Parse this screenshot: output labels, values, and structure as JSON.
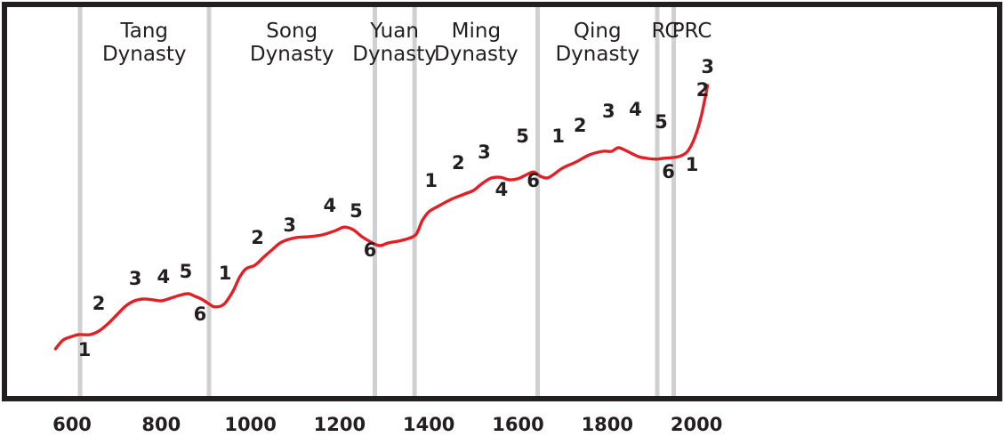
{
  "chart_data": {
    "type": "line",
    "title": "",
    "xlabel": "",
    "ylabel": "",
    "xlim": [
      550,
      2035
    ],
    "grid": false,
    "x_ticks": [
      {
        "value": 600,
        "label": "600"
      },
      {
        "value": 800,
        "label": "800"
      },
      {
        "value": 1000,
        "label": "1000"
      },
      {
        "value": 1200,
        "label": "1200"
      },
      {
        "value": 1400,
        "label": "1400"
      },
      {
        "value": 1600,
        "label": "1600"
      },
      {
        "value": 1800,
        "label": "1800"
      },
      {
        "value": 2000,
        "label": "2000"
      }
    ],
    "dynasty_boundaries": [
      618,
      907,
      1279,
      1368,
      1644,
      1912,
      1949
    ],
    "dynasties": [
      {
        "lines": [
          "Tang",
          "Dynasty"
        ],
        "center": 762
      },
      {
        "lines": [
          "Song",
          "Dynasty"
        ],
        "center": 1093
      },
      {
        "lines": [
          "Yuan",
          "Dynasty"
        ],
        "center": 1323
      },
      {
        "lines": [
          "Ming",
          "Dynasty"
        ],
        "center": 1506
      },
      {
        "lines": [
          "Qing",
          "Dynasty"
        ],
        "center": 1778
      },
      {
        "lines": [
          "RC"
        ],
        "center": 1930
      },
      {
        "lines": [
          "PRC"
        ],
        "center": 1990
      }
    ],
    "series": [
      {
        "color": "#e31f26",
        "points": [
          [
            563,
            0.12
          ],
          [
            580,
            0.145
          ],
          [
            600,
            0.155
          ],
          [
            615,
            0.16
          ],
          [
            640,
            0.16
          ],
          [
            660,
            0.17
          ],
          [
            680,
            0.19
          ],
          [
            700,
            0.215
          ],
          [
            720,
            0.24
          ],
          [
            740,
            0.255
          ],
          [
            760,
            0.26
          ],
          [
            780,
            0.258
          ],
          [
            800,
            0.255
          ],
          [
            820,
            0.262
          ],
          [
            840,
            0.27
          ],
          [
            860,
            0.275
          ],
          [
            875,
            0.268
          ],
          [
            890,
            0.26
          ],
          [
            905,
            0.248
          ],
          [
            920,
            0.238
          ],
          [
            940,
            0.245
          ],
          [
            960,
            0.28
          ],
          [
            975,
            0.32
          ],
          [
            990,
            0.345
          ],
          [
            1010,
            0.355
          ],
          [
            1030,
            0.378
          ],
          [
            1050,
            0.4
          ],
          [
            1070,
            0.42
          ],
          [
            1100,
            0.432
          ],
          [
            1130,
            0.435
          ],
          [
            1160,
            0.44
          ],
          [
            1190,
            0.452
          ],
          [
            1210,
            0.462
          ],
          [
            1230,
            0.455
          ],
          [
            1250,
            0.435
          ],
          [
            1270,
            0.42
          ],
          [
            1290,
            0.41
          ],
          [
            1310,
            0.418
          ],
          [
            1340,
            0.425
          ],
          [
            1370,
            0.44
          ],
          [
            1385,
            0.48
          ],
          [
            1400,
            0.505
          ],
          [
            1420,
            0.52
          ],
          [
            1450,
            0.54
          ],
          [
            1480,
            0.555
          ],
          [
            1500,
            0.565
          ],
          [
            1520,
            0.585
          ],
          [
            1540,
            0.6
          ],
          [
            1560,
            0.602
          ],
          [
            1580,
            0.595
          ],
          [
            1600,
            0.598
          ],
          [
            1620,
            0.61
          ],
          [
            1635,
            0.617
          ],
          [
            1650,
            0.605
          ],
          [
            1665,
            0.6
          ],
          [
            1680,
            0.61
          ],
          [
            1700,
            0.628
          ],
          [
            1730,
            0.645
          ],
          [
            1760,
            0.665
          ],
          [
            1790,
            0.675
          ],
          [
            1810,
            0.675
          ],
          [
            1825,
            0.685
          ],
          [
            1845,
            0.675
          ],
          [
            1870,
            0.66
          ],
          [
            1890,
            0.655
          ],
          [
            1910,
            0.653
          ],
          [
            1925,
            0.655
          ],
          [
            1950,
            0.658
          ],
          [
            1965,
            0.662
          ],
          [
            1980,
            0.675
          ],
          [
            1995,
            0.71
          ],
          [
            2010,
            0.77
          ],
          [
            2025,
            0.86
          ]
        ]
      }
    ],
    "phase_labels": [
      {
        "text": "1",
        "x": 628,
        "y": 0.1
      },
      {
        "text": "2",
        "x": 660,
        "y": 0.23
      },
      {
        "text": "3",
        "x": 742,
        "y": 0.3
      },
      {
        "text": "4",
        "x": 805,
        "y": 0.305
      },
      {
        "text": "5",
        "x": 855,
        "y": 0.32
      },
      {
        "text": "6",
        "x": 887,
        "y": 0.2
      },
      {
        "text": "1",
        "x": 943,
        "y": 0.315
      },
      {
        "text": "2",
        "x": 1016,
        "y": 0.415
      },
      {
        "text": "3",
        "x": 1088,
        "y": 0.45
      },
      {
        "text": "4",
        "x": 1178,
        "y": 0.505
      },
      {
        "text": "5",
        "x": 1237,
        "y": 0.49
      },
      {
        "text": "6",
        "x": 1268,
        "y": 0.38
      },
      {
        "text": "1",
        "x": 1405,
        "y": 0.575
      },
      {
        "text": "2",
        "x": 1466,
        "y": 0.625
      },
      {
        "text": "3",
        "x": 1524,
        "y": 0.655
      },
      {
        "text": "4",
        "x": 1563,
        "y": 0.55
      },
      {
        "text": "5",
        "x": 1610,
        "y": 0.7
      },
      {
        "text": "6",
        "x": 1634,
        "y": 0.575
      },
      {
        "text": "1",
        "x": 1690,
        "y": 0.7
      },
      {
        "text": "2",
        "x": 1739,
        "y": 0.73
      },
      {
        "text": "3",
        "x": 1803,
        "y": 0.77
      },
      {
        "text": "4",
        "x": 1863,
        "y": 0.775
      },
      {
        "text": "5",
        "x": 1921,
        "y": 0.74
      },
      {
        "text": "6",
        "x": 1937,
        "y": 0.6
      },
      {
        "text": "1",
        "x": 1990,
        "y": 0.62
      },
      {
        "text": "2",
        "x": 2014,
        "y": 0.83
      },
      {
        "text": "3",
        "x": 2025,
        "y": 0.895
      }
    ]
  }
}
